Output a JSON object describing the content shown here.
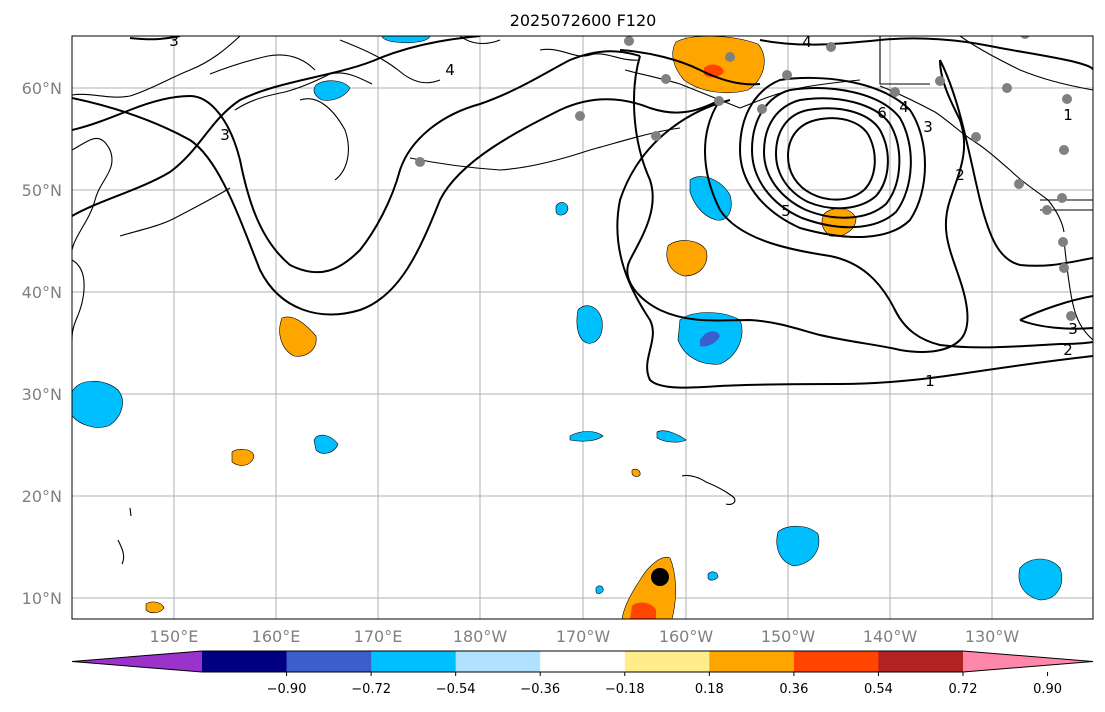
{
  "title": "2025072600 F120",
  "map": {
    "lat_labels": [
      "60°N",
      "50°N",
      "40°N",
      "30°N",
      "20°N",
      "10°N"
    ],
    "lon_labels": [
      "150°E",
      "160°E",
      "170°E",
      "180°W",
      "170°W",
      "160°W",
      "150°W",
      "140°W",
      "130°W"
    ],
    "contour_labels": [
      "3",
      "4",
      "4",
      "3",
      "6",
      "4",
      "3",
      "5",
      "2",
      "1",
      "2",
      "3",
      "1"
    ],
    "storm_marker_icon": "black-circle-icon",
    "station_marker_icon": "gray-dot-icon"
  },
  "colorbar": {
    "ticks": [
      "−0.90",
      "−0.72",
      "−0.54",
      "−0.36",
      "−0.18",
      "0.18",
      "0.36",
      "0.54",
      "0.72",
      "0.90"
    ],
    "colors": [
      "#9933cc",
      "#000080",
      "#3a5fcd",
      "#00bfff",
      "#b0e2ff",
      "#ffffff",
      "#ffec8b",
      "#ffa500",
      "#ff4500",
      "#b22222",
      "#ff88aa"
    ]
  },
  "chart_data": {
    "type": "map",
    "lat_range": [
      8,
      65
    ],
    "lon_range": [
      140,
      243
    ],
    "valid_time": "2025072600 F120"
  }
}
